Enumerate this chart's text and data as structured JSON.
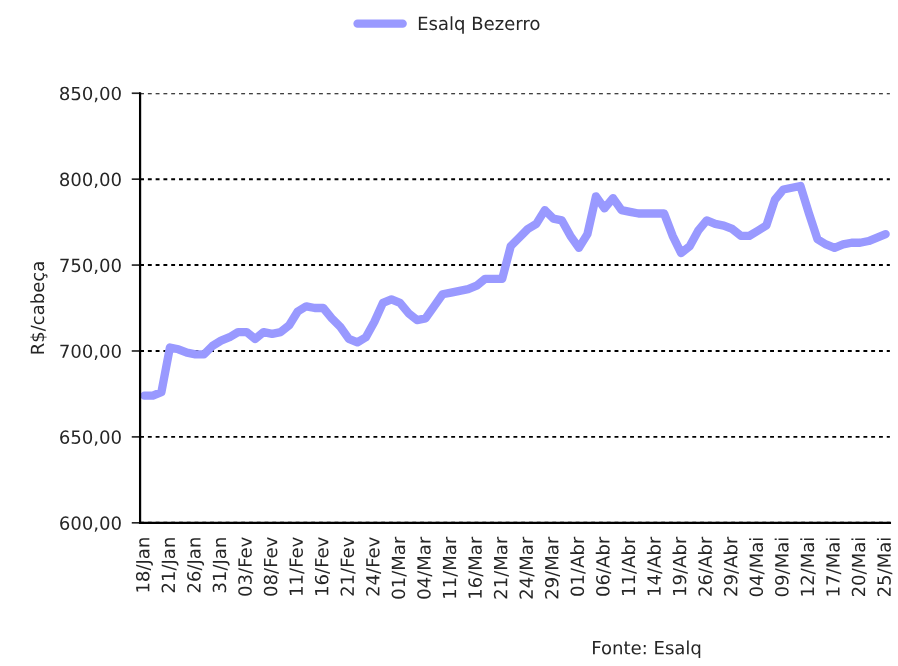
{
  "chart_data": {
    "type": "line",
    "ylabel": "R$/cabeça",
    "categories": [
      "18/Jan",
      null,
      null,
      "21/Jan",
      null,
      null,
      "26/Jan",
      null,
      null,
      "31/Jan",
      null,
      null,
      "03/Fev",
      null,
      null,
      "08/Fev",
      null,
      null,
      "11/Fev",
      null,
      null,
      "16/Fev",
      null,
      null,
      "21/Fev",
      null,
      null,
      "24/Fev",
      null,
      null,
      "01/Mar",
      null,
      null,
      "04/Mar",
      null,
      null,
      "11/Mar",
      null,
      null,
      "16/Mar",
      null,
      null,
      "21/Mar",
      null,
      null,
      "24/Mar",
      null,
      null,
      "29/Mar",
      null,
      null,
      "01/Abr",
      null,
      null,
      "06/Abr",
      null,
      null,
      "11/Abr",
      null,
      null,
      "14/Abr",
      null,
      null,
      "19/Abr",
      null,
      null,
      "26/Abr",
      null,
      null,
      "29/Abr",
      null,
      null,
      "04/Mai",
      null,
      null,
      "09/Mai",
      null,
      null,
      "12/Mai",
      null,
      null,
      "17/Mai",
      null,
      null,
      "20/Mai",
      null,
      null,
      "25/Mai"
    ],
    "series": [
      {
        "name": "Esalq Bezerro",
        "color": "#9999ff",
        "values": [
          674,
          674,
          676,
          702,
          701,
          699,
          698,
          698,
          703,
          706,
          708,
          711,
          711,
          707,
          711,
          710,
          711,
          715,
          723,
          726,
          725,
          725,
          719,
          714,
          707,
          705,
          708,
          717,
          728,
          730,
          728,
          722,
          718,
          719,
          726,
          733,
          734,
          735,
          736,
          738,
          742,
          742,
          742,
          761,
          766,
          771,
          774,
          782,
          777,
          776,
          767,
          760,
          768,
          790,
          783,
          789,
          782,
          781,
          780,
          780,
          780,
          780,
          767,
          757,
          761,
          770,
          776,
          774,
          773,
          771,
          767,
          767,
          770,
          773,
          788,
          794,
          795,
          796,
          780,
          765,
          762,
          760,
          762,
          763,
          763,
          764,
          766,
          768
        ]
      }
    ],
    "ylim": [
      600,
      850
    ],
    "yticks": [
      {
        "value": 600,
        "label": "600,00"
      },
      {
        "value": 650,
        "label": "650,00"
      },
      {
        "value": 700,
        "label": "700,00"
      },
      {
        "value": 750,
        "label": "750,00"
      },
      {
        "value": 800,
        "label": "800,00"
      },
      {
        "value": 850,
        "label": "850,00"
      }
    ],
    "grid": "y",
    "legend": "top",
    "marker": "none",
    "line_style": "solid",
    "annotations": [
      "Fonte: Esalq"
    ]
  }
}
